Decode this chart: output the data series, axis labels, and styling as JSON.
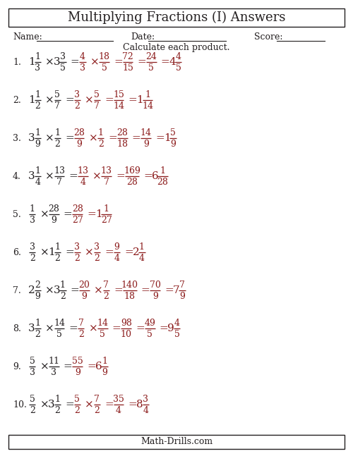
{
  "title": "Multiplying Fractions (I) Answers",
  "subtitle": "Calculate each product.",
  "footer": "Math-Drills.com",
  "bg_color": "#ffffff",
  "black": "#231f20",
  "red": "#8b1a1a",
  "fig_w": 5.0,
  "fig_h": 6.47,
  "dpi": 100,
  "problems": [
    {
      "num": "1.",
      "parts": [
        {
          "type": "mixed_black",
          "whole": "1",
          "num": "1",
          "den": "3"
        },
        {
          "type": "op_black",
          "text": "×"
        },
        {
          "type": "mixed_black",
          "whole": "3",
          "num": "3",
          "den": "5"
        },
        {
          "type": "eq_black",
          "text": "="
        },
        {
          "type": "frac_red",
          "num": "4",
          "den": "3"
        },
        {
          "type": "op_red",
          "text": "×"
        },
        {
          "type": "frac_red",
          "num": "18",
          "den": "5"
        },
        {
          "type": "eq_red",
          "text": "="
        },
        {
          "type": "frac_red",
          "num": "72",
          "den": "15"
        },
        {
          "type": "eq_red",
          "text": "="
        },
        {
          "type": "frac_red",
          "num": "24",
          "den": "5"
        },
        {
          "type": "eq_red",
          "text": "="
        },
        {
          "type": "mixed_red",
          "whole": "4",
          "num": "4",
          "den": "5"
        }
      ]
    },
    {
      "num": "2.",
      "parts": [
        {
          "type": "mixed_black",
          "whole": "1",
          "num": "1",
          "den": "2"
        },
        {
          "type": "op_black",
          "text": "×"
        },
        {
          "type": "frac_black",
          "num": "5",
          "den": "7"
        },
        {
          "type": "eq_black",
          "text": "="
        },
        {
          "type": "frac_red",
          "num": "3",
          "den": "2"
        },
        {
          "type": "op_red",
          "text": "×"
        },
        {
          "type": "frac_red",
          "num": "5",
          "den": "7"
        },
        {
          "type": "eq_red",
          "text": "="
        },
        {
          "type": "frac_red",
          "num": "15",
          "den": "14"
        },
        {
          "type": "eq_red",
          "text": "="
        },
        {
          "type": "mixed_red",
          "whole": "1",
          "num": "1",
          "den": "14"
        }
      ]
    },
    {
      "num": "3.",
      "parts": [
        {
          "type": "mixed_black",
          "whole": "3",
          "num": "1",
          "den": "9"
        },
        {
          "type": "op_black",
          "text": "×"
        },
        {
          "type": "frac_black",
          "num": "1",
          "den": "2"
        },
        {
          "type": "eq_black",
          "text": "="
        },
        {
          "type": "frac_red",
          "num": "28",
          "den": "9"
        },
        {
          "type": "op_red",
          "text": "×"
        },
        {
          "type": "frac_red",
          "num": "1",
          "den": "2"
        },
        {
          "type": "eq_red",
          "text": "="
        },
        {
          "type": "frac_red",
          "num": "28",
          "den": "18"
        },
        {
          "type": "eq_red",
          "text": "="
        },
        {
          "type": "frac_red",
          "num": "14",
          "den": "9"
        },
        {
          "type": "eq_red",
          "text": "="
        },
        {
          "type": "mixed_red",
          "whole": "1",
          "num": "5",
          "den": "9"
        }
      ]
    },
    {
      "num": "4.",
      "parts": [
        {
          "type": "mixed_black",
          "whole": "3",
          "num": "1",
          "den": "4"
        },
        {
          "type": "op_black",
          "text": "×"
        },
        {
          "type": "frac_black",
          "num": "13",
          "den": "7"
        },
        {
          "type": "eq_black",
          "text": "="
        },
        {
          "type": "frac_red",
          "num": "13",
          "den": "4"
        },
        {
          "type": "op_red",
          "text": "×"
        },
        {
          "type": "frac_red",
          "num": "13",
          "den": "7"
        },
        {
          "type": "eq_red",
          "text": "="
        },
        {
          "type": "frac_red",
          "num": "169",
          "den": "28"
        },
        {
          "type": "eq_red",
          "text": "="
        },
        {
          "type": "mixed_red",
          "whole": "6",
          "num": "1",
          "den": "28"
        }
      ]
    },
    {
      "num": "5.",
      "parts": [
        {
          "type": "frac_black",
          "num": "1",
          "den": "3"
        },
        {
          "type": "op_black",
          "text": "×"
        },
        {
          "type": "frac_black",
          "num": "28",
          "den": "9"
        },
        {
          "type": "eq_black",
          "text": "="
        },
        {
          "type": "frac_red",
          "num": "28",
          "den": "27"
        },
        {
          "type": "eq_red",
          "text": "="
        },
        {
          "type": "mixed_red",
          "whole": "1",
          "num": "1",
          "den": "27"
        }
      ]
    },
    {
      "num": "6.",
      "parts": [
        {
          "type": "frac_black",
          "num": "3",
          "den": "2"
        },
        {
          "type": "op_black",
          "text": "×"
        },
        {
          "type": "mixed_black",
          "whole": "1",
          "num": "1",
          "den": "2"
        },
        {
          "type": "eq_black",
          "text": "="
        },
        {
          "type": "frac_red",
          "num": "3",
          "den": "2"
        },
        {
          "type": "op_red",
          "text": "×"
        },
        {
          "type": "frac_red",
          "num": "3",
          "den": "2"
        },
        {
          "type": "eq_red",
          "text": "="
        },
        {
          "type": "frac_red",
          "num": "9",
          "den": "4"
        },
        {
          "type": "eq_red",
          "text": "="
        },
        {
          "type": "mixed_red",
          "whole": "2",
          "num": "1",
          "den": "4"
        }
      ]
    },
    {
      "num": "7.",
      "parts": [
        {
          "type": "mixed_black",
          "whole": "2",
          "num": "2",
          "den": "9"
        },
        {
          "type": "op_black",
          "text": "×"
        },
        {
          "type": "mixed_black",
          "whole": "3",
          "num": "1",
          "den": "2"
        },
        {
          "type": "eq_black",
          "text": "="
        },
        {
          "type": "frac_red",
          "num": "20",
          "den": "9"
        },
        {
          "type": "op_red",
          "text": "×"
        },
        {
          "type": "frac_red",
          "num": "7",
          "den": "2"
        },
        {
          "type": "eq_red",
          "text": "="
        },
        {
          "type": "frac_red",
          "num": "140",
          "den": "18"
        },
        {
          "type": "eq_red",
          "text": "="
        },
        {
          "type": "frac_red",
          "num": "70",
          "den": "9"
        },
        {
          "type": "eq_red",
          "text": "="
        },
        {
          "type": "mixed_red",
          "whole": "7",
          "num": "7",
          "den": "9"
        }
      ]
    },
    {
      "num": "8.",
      "parts": [
        {
          "type": "mixed_black",
          "whole": "3",
          "num": "1",
          "den": "2"
        },
        {
          "type": "op_black",
          "text": "×"
        },
        {
          "type": "frac_black",
          "num": "14",
          "den": "5"
        },
        {
          "type": "eq_black",
          "text": "="
        },
        {
          "type": "frac_red",
          "num": "7",
          "den": "2"
        },
        {
          "type": "op_red",
          "text": "×"
        },
        {
          "type": "frac_red",
          "num": "14",
          "den": "5"
        },
        {
          "type": "eq_red",
          "text": "="
        },
        {
          "type": "frac_red",
          "num": "98",
          "den": "10"
        },
        {
          "type": "eq_red",
          "text": "="
        },
        {
          "type": "frac_red",
          "num": "49",
          "den": "5"
        },
        {
          "type": "eq_red",
          "text": "="
        },
        {
          "type": "mixed_red",
          "whole": "9",
          "num": "4",
          "den": "5"
        }
      ]
    },
    {
      "num": "9.",
      "parts": [
        {
          "type": "frac_black",
          "num": "5",
          "den": "3"
        },
        {
          "type": "op_black",
          "text": "×"
        },
        {
          "type": "frac_black",
          "num": "11",
          "den": "3"
        },
        {
          "type": "eq_black",
          "text": "="
        },
        {
          "type": "frac_red",
          "num": "55",
          "den": "9"
        },
        {
          "type": "eq_red",
          "text": "="
        },
        {
          "type": "mixed_red",
          "whole": "6",
          "num": "1",
          "den": "9"
        }
      ]
    },
    {
      "num": "10.",
      "parts": [
        {
          "type": "frac_black",
          "num": "5",
          "den": "2"
        },
        {
          "type": "op_black",
          "text": "×"
        },
        {
          "type": "mixed_black",
          "whole": "3",
          "num": "1",
          "den": "2"
        },
        {
          "type": "eq_black",
          "text": "="
        },
        {
          "type": "frac_red",
          "num": "5",
          "den": "2"
        },
        {
          "type": "op_red",
          "text": "×"
        },
        {
          "type": "frac_red",
          "num": "7",
          "den": "2"
        },
        {
          "type": "eq_red",
          "text": "="
        },
        {
          "type": "frac_red",
          "num": "35",
          "den": "4"
        },
        {
          "type": "eq_red",
          "text": "="
        },
        {
          "type": "mixed_red",
          "whole": "8",
          "num": "3",
          "den": "4"
        }
      ]
    }
  ]
}
